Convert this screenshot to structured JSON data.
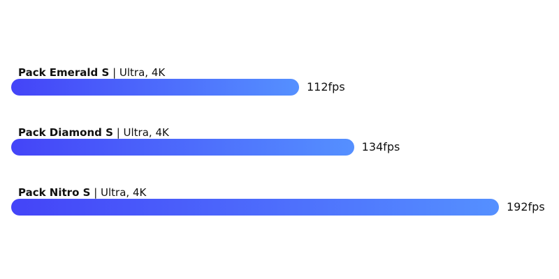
{
  "chart_data": {
    "type": "bar",
    "orientation": "horizontal",
    "categories": [
      "Pack Emerald S",
      "Pack Diamond S",
      "Pack Nitro S"
    ],
    "settings": [
      "Ultra, 4K",
      "Ultra, 4K",
      "Ultra, 4K"
    ],
    "values": [
      112,
      134,
      192
    ],
    "value_labels": [
      "112fps",
      "134fps",
      "192fps"
    ],
    "separator": "|",
    "grid": false,
    "colors": {
      "gradient_start": "#4444f8",
      "gradient_end": "#5590ff"
    }
  }
}
